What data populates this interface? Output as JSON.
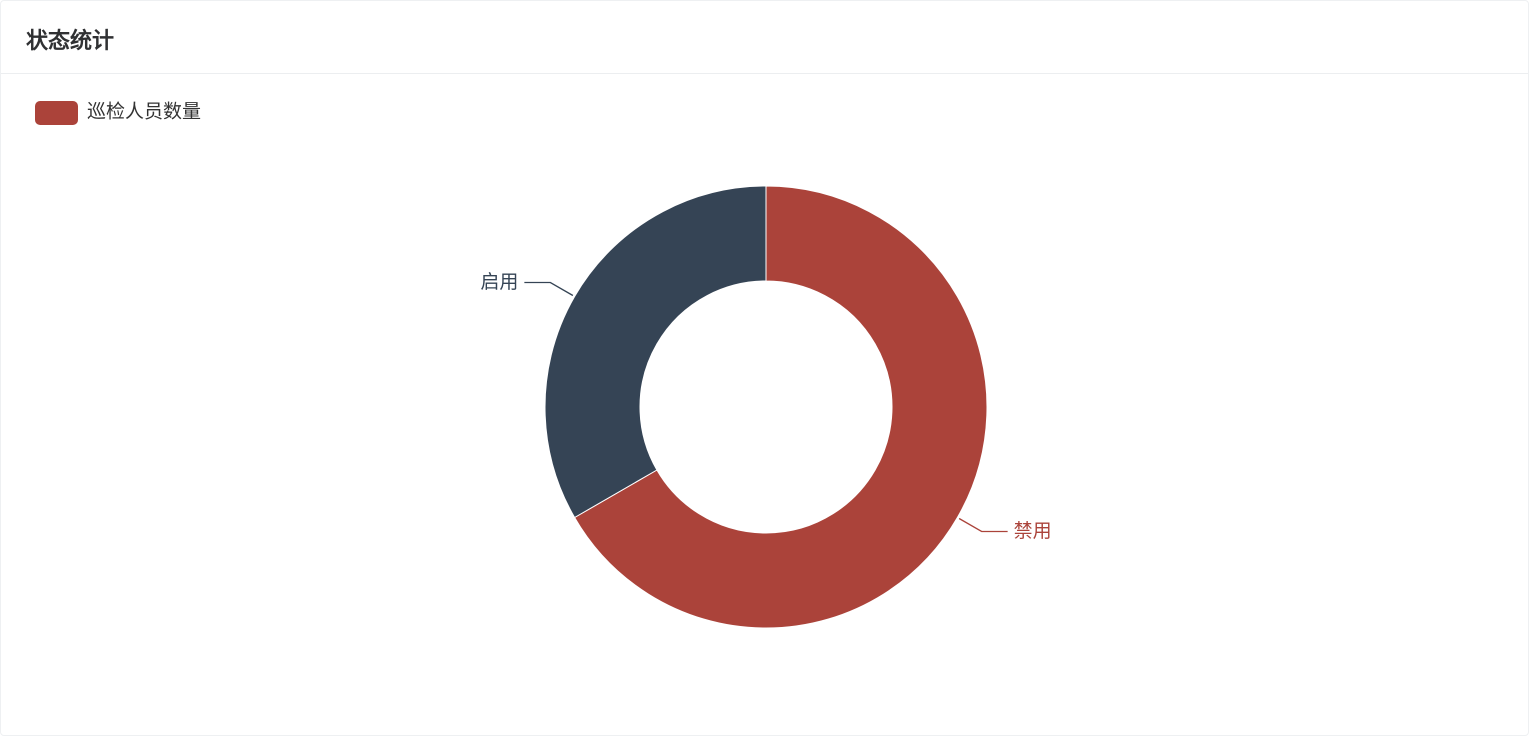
{
  "chart_data": {
    "type": "pie",
    "title": "状态统计",
    "categories": [
      "禁用",
      "启用"
    ],
    "series": [
      {
        "name": "巡检人员数量",
        "values": [
          2,
          1
        ],
        "colors": [
          "#ab433a",
          "#354455"
        ]
      }
    ],
    "donut": true
  }
}
